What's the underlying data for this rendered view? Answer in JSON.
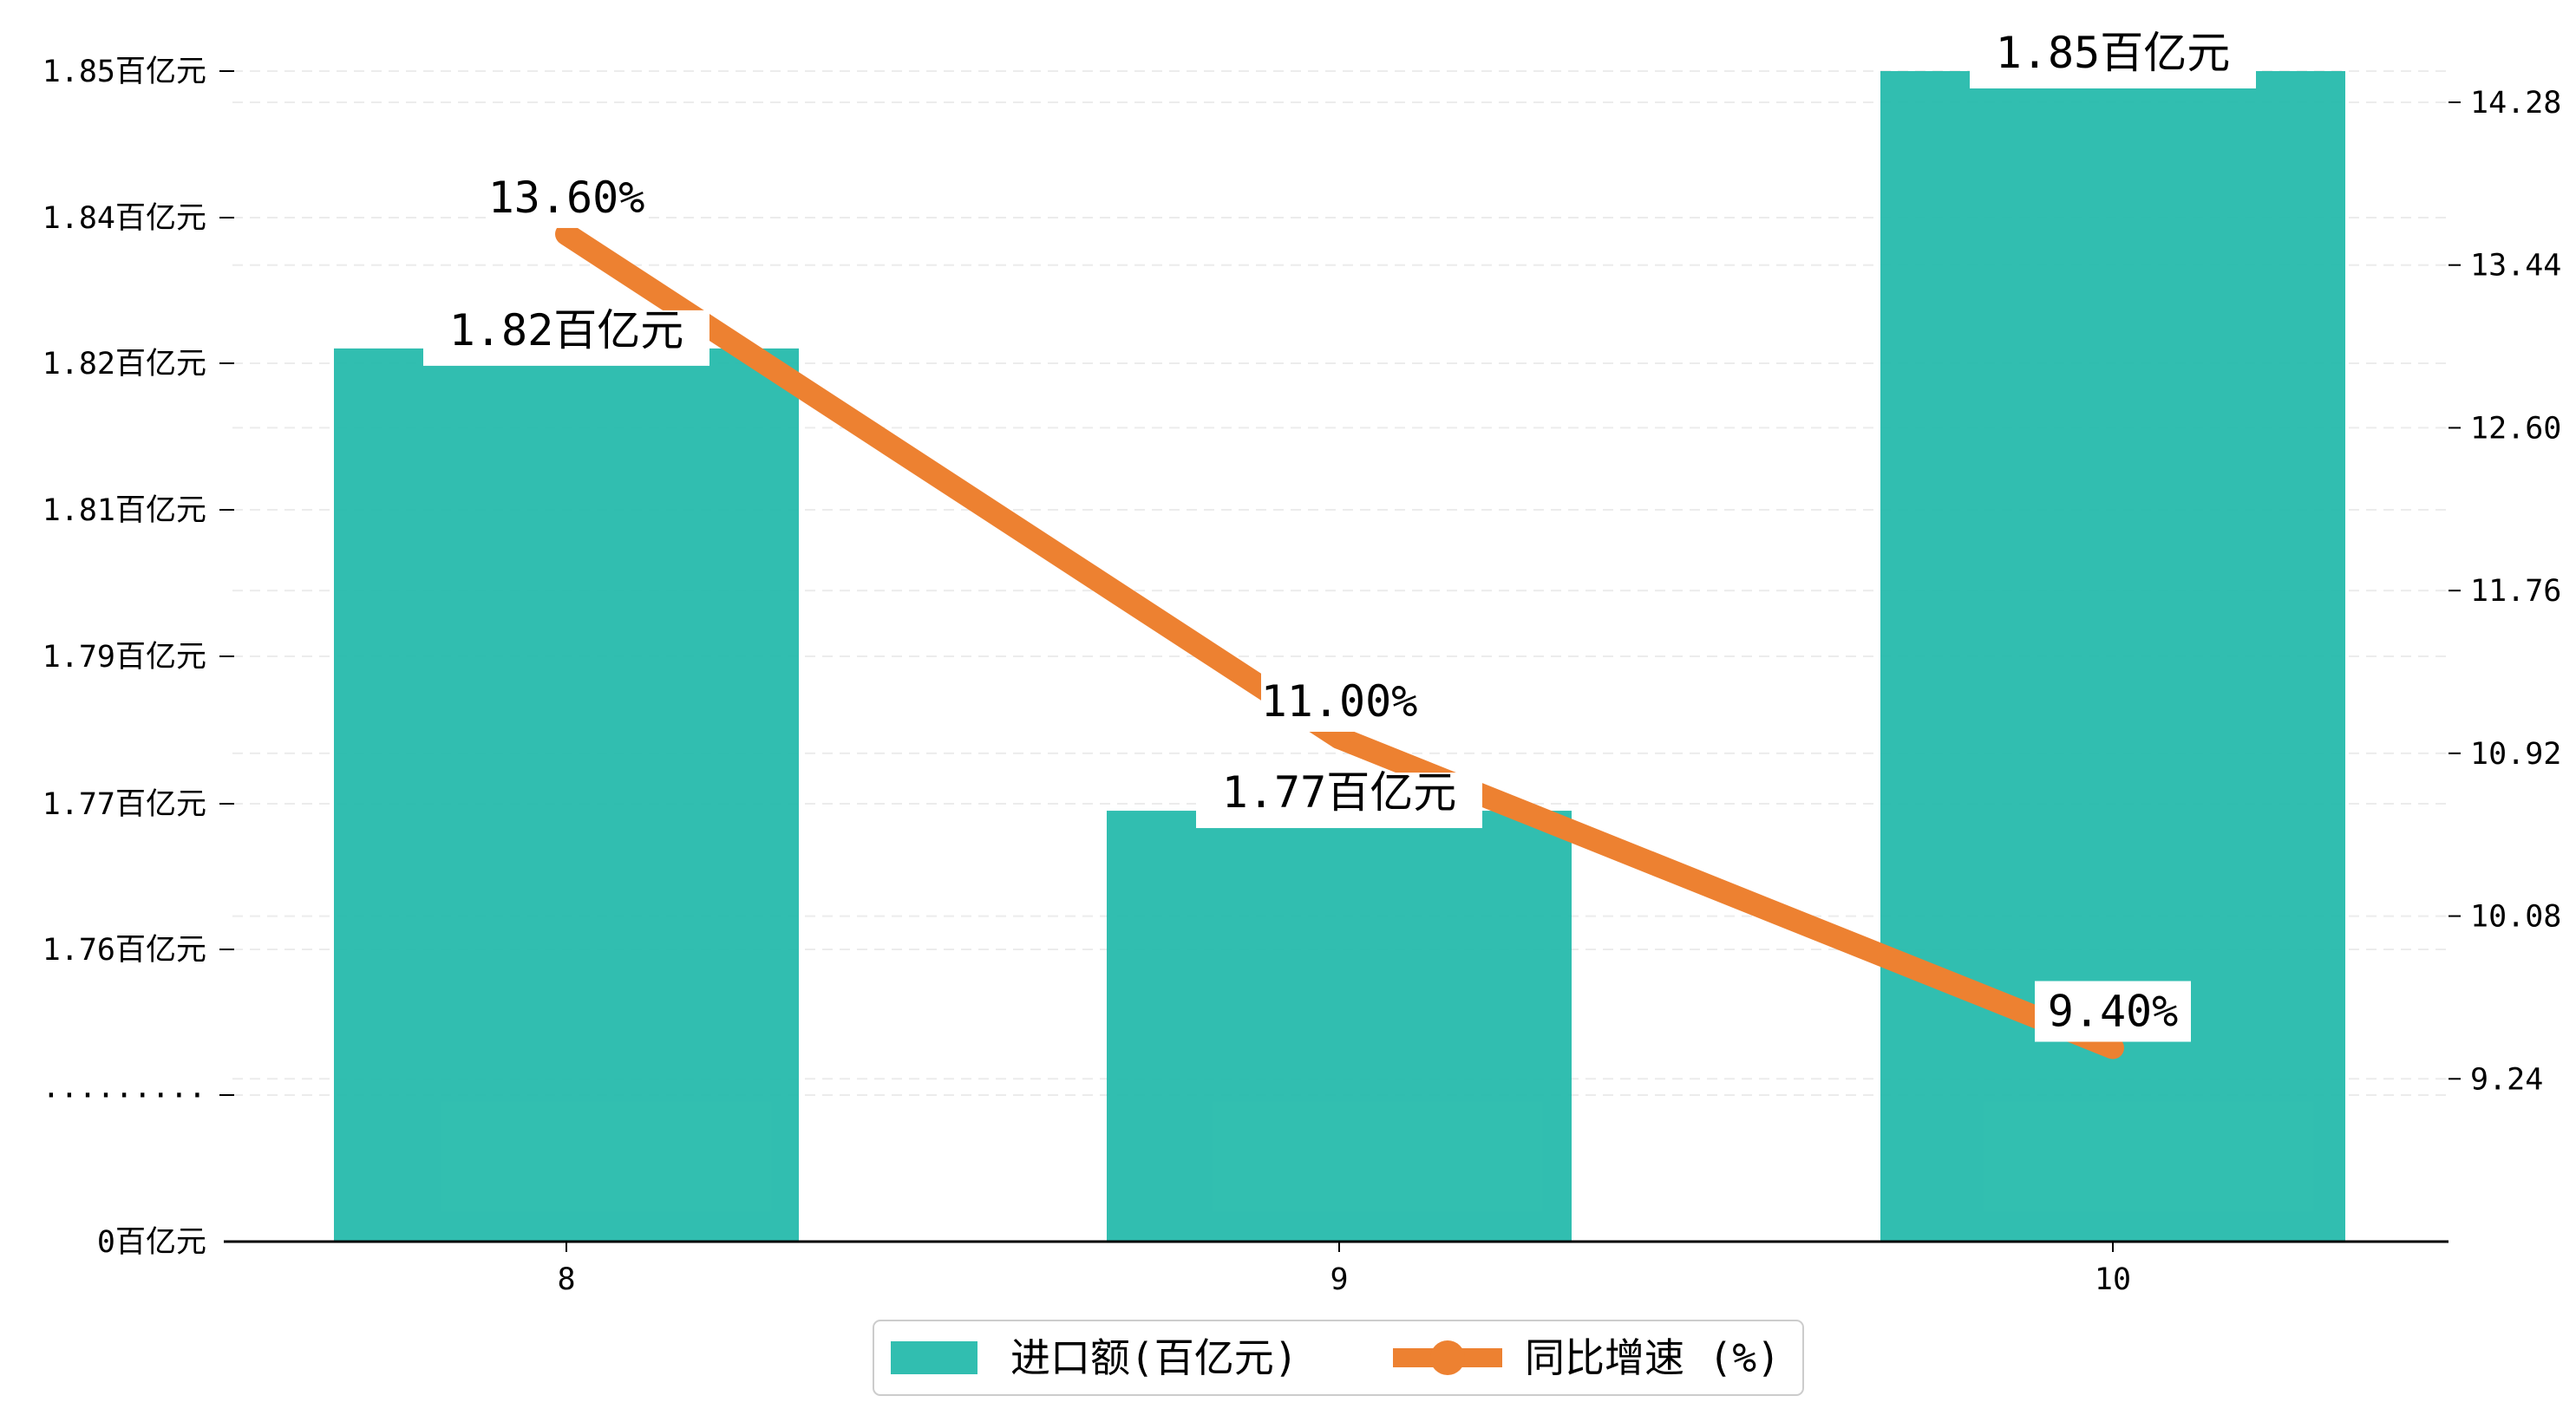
{
  "chart_data": {
    "type": "bar",
    "categories": [
      "8",
      "9",
      "10"
    ],
    "series": [
      {
        "name": "进口额(百亿元)",
        "type": "bar",
        "axis": "left",
        "values": [
          1.82,
          1.77,
          1.85
        ],
        "labels": [
          "1.82百亿元",
          "1.77百亿元",
          "1.85百亿元"
        ],
        "color": "#20b9a9"
      },
      {
        "name": "同比增速 (%)",
        "type": "line",
        "axis": "right",
        "values": [
          13.6,
          11.0,
          9.4
        ],
        "labels": [
          "13.60%",
          "11.00%",
          "9.40%"
        ],
        "color": "#ed8131"
      }
    ],
    "left_axis": {
      "ticks": [
        "1.85百亿元",
        "1.84百亿元",
        "1.82百亿元",
        "1.81百亿元",
        "1.79百亿元",
        "1.77百亿元",
        "1.76百亿元",
        "·········",
        "0百亿元"
      ],
      "broken": true
    },
    "right_axis": {
      "ticks": [
        "14.28",
        "13.44",
        "12.60",
        "11.76",
        "10.92",
        "10.08",
        "9.24"
      ],
      "tick_values": [
        14.28,
        13.44,
        12.6,
        11.76,
        10.92,
        10.08,
        9.24
      ],
      "ylim": [
        8.4,
        14.28
      ]
    },
    "grid": "horizontal dashed",
    "legend_position": "bottom-center"
  }
}
